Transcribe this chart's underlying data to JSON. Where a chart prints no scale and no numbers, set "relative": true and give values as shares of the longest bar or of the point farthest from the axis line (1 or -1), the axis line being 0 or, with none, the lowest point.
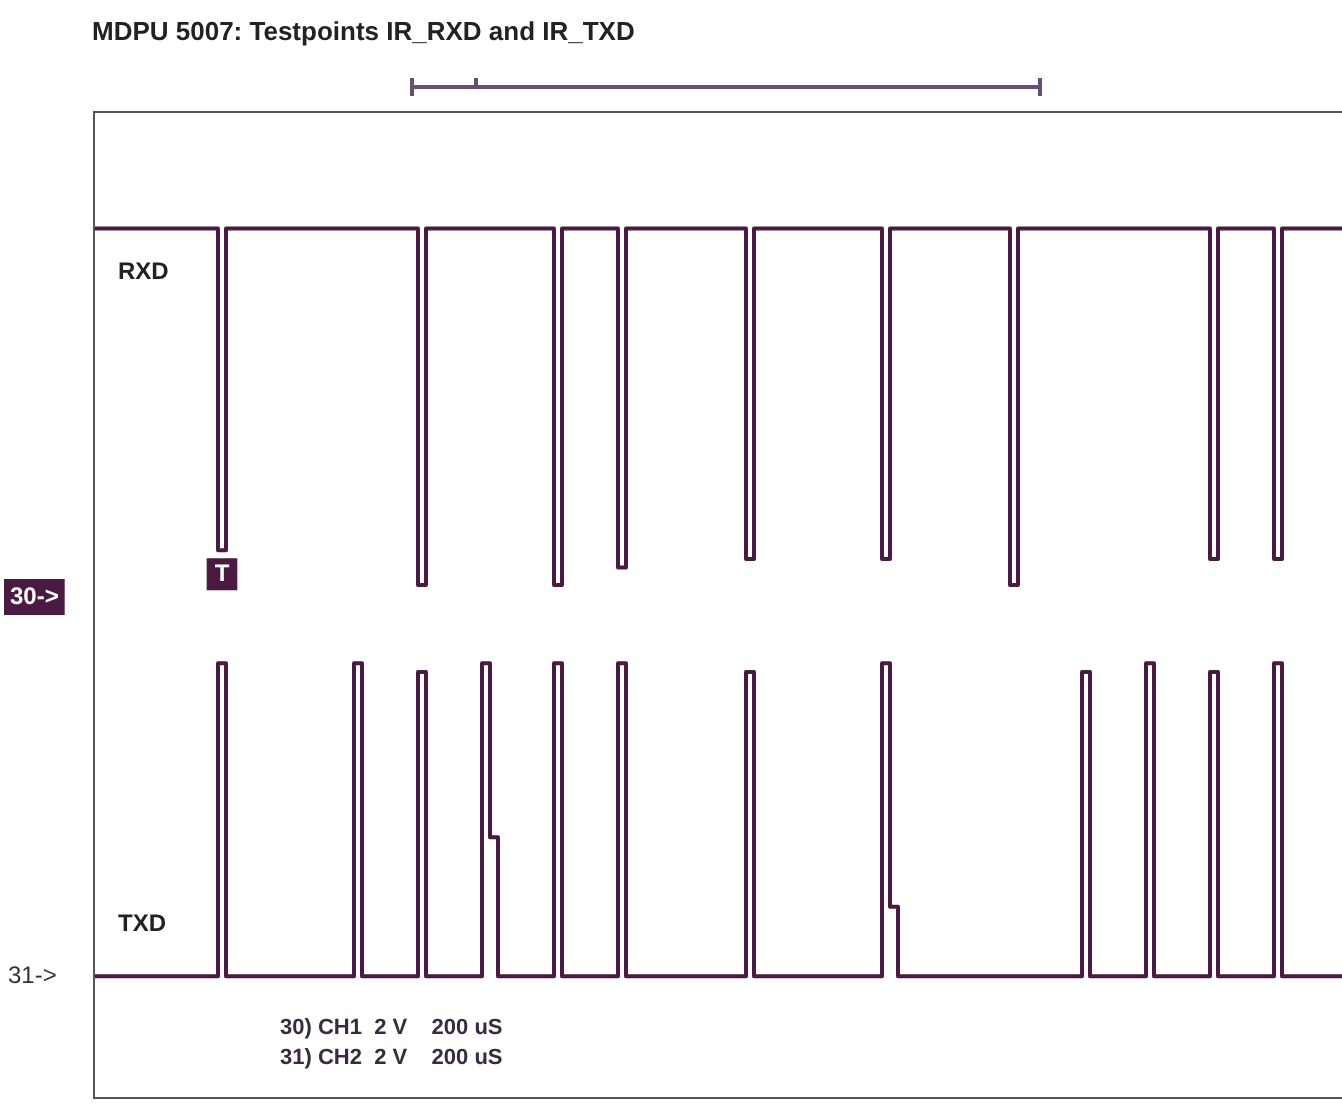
{
  "chart_data": {
    "type": "step",
    "title": "MDPU 5007: Testpoints IR_RXD and IR_TXD",
    "relative": true,
    "legend": false,
    "categories": [
      null,
      null,
      null,
      null,
      null,
      null,
      null,
      null,
      null,
      null,
      null,
      null,
      null,
      null,
      null,
      null,
      null,
      null,
      null,
      null,
      null,
      null,
      null,
      null,
      null,
      null,
      null,
      null,
      null,
      null,
      null,
      null,
      null,
      null,
      null,
      null,
      null,
      null,
      null,
      null,
      null,
      null,
      null,
      null,
      null,
      null,
      null,
      null,
      null,
      null,
      null,
      null,
      null,
      null,
      null,
      null,
      null,
      null,
      null,
      null,
      null,
      null,
      null,
      null,
      null,
      null,
      null,
      null,
      null,
      null,
      null,
      null,
      null,
      null,
      null,
      null,
      null,
      null,
      null,
      null,
      null,
      null,
      null,
      null,
      null,
      null,
      null,
      null,
      null,
      null,
      null,
      null,
      null,
      null,
      null,
      null,
      null,
      null,
      null,
      null,
      null,
      null,
      null,
      null,
      null,
      null,
      null,
      null,
      null,
      null,
      null,
      null,
      null,
      null,
      null,
      null,
      null,
      null,
      null,
      null,
      null,
      null,
      null,
      null,
      null,
      null,
      null,
      null,
      null,
      null,
      null,
      null,
      null,
      null,
      null,
      null,
      null,
      null,
      null,
      null,
      null,
      null,
      null,
      null,
      null,
      null,
      null,
      null,
      null,
      null,
      null,
      null,
      null,
      null,
      null,
      null,
      null
    ],
    "series": [
      {
        "name": "RXD",
        "color": "#4a1a42",
        "values": [
          1,
          1,
          1,
          1,
          1,
          1,
          1,
          1,
          1,
          1,
          1,
          1,
          1,
          1,
          1,
          1,
          0.63,
          1,
          1,
          1,
          1,
          1,
          1,
          1,
          1,
          1,
          1,
          1,
          1,
          1,
          1,
          1,
          1,
          1,
          1,
          1,
          1,
          1,
          1,
          1,
          1,
          0.59,
          1,
          1,
          1,
          1,
          1,
          1,
          1,
          1,
          1,
          1,
          1,
          1,
          1,
          1,
          1,
          1,
          0.59,
          1,
          1,
          1,
          1,
          1,
          1,
          1,
          0.61,
          1,
          1,
          1,
          1,
          1,
          1,
          1,
          1,
          1,
          1,
          1,
          1,
          1,
          1,
          1,
          0.62,
          1,
          1,
          1,
          1,
          1,
          1,
          1,
          1,
          1,
          1,
          1,
          1,
          1,
          1,
          1,
          1,
          0.62,
          1,
          1,
          1,
          1,
          1,
          1,
          1,
          1,
          1,
          1,
          1,
          1,
          1,
          1,
          1,
          0.59,
          1,
          1,
          1,
          1,
          1,
          1,
          1,
          1,
          1,
          1,
          1,
          1,
          1,
          1,
          1,
          1,
          1,
          1,
          1,
          1,
          1,
          1,
          1,
          1,
          0.62,
          1,
          1,
          1,
          1,
          1,
          1,
          1,
          0.62,
          1,
          1,
          1,
          1,
          1,
          1,
          1,
          1
        ]
      },
      {
        "name": "TXD",
        "color": "#4a1a42",
        "values": [
          0.14,
          0.14,
          0.14,
          0.14,
          0.14,
          0.14,
          0.14,
          0.14,
          0.14,
          0.14,
          0.14,
          0.14,
          0.14,
          0.14,
          0.14,
          0.14,
          0.5,
          0.14,
          0.14,
          0.14,
          0.14,
          0.14,
          0.14,
          0.14,
          0.14,
          0.14,
          0.14,
          0.14,
          0.14,
          0.14,
          0.14,
          0.14,
          0.14,
          0.5,
          0.14,
          0.14,
          0.14,
          0.14,
          0.14,
          0.14,
          0.14,
          0.49,
          0.14,
          0.14,
          0.14,
          0.14,
          0.14,
          0.14,
          0.14,
          0.5,
          0.3,
          0.14,
          0.14,
          0.14,
          0.14,
          0.14,
          0.14,
          0.14,
          0.5,
          0.14,
          0.14,
          0.14,
          0.14,
          0.14,
          0.14,
          0.14,
          0.5,
          0.14,
          0.14,
          0.14,
          0.14,
          0.14,
          0.14,
          0.14,
          0.14,
          0.14,
          0.14,
          0.14,
          0.14,
          0.14,
          0.14,
          0.14,
          0.49,
          0.14,
          0.14,
          0.14,
          0.14,
          0.14,
          0.14,
          0.14,
          0.14,
          0.14,
          0.14,
          0.14,
          0.14,
          0.14,
          0.14,
          0.14,
          0.14,
          0.5,
          0.22,
          0.14,
          0.14,
          0.14,
          0.14,
          0.14,
          0.14,
          0.14,
          0.14,
          0.14,
          0.14,
          0.14,
          0.14,
          0.14,
          0.14,
          0.14,
          0.14,
          0.14,
          0.14,
          0.14,
          0.14,
          0.14,
          0.14,
          0.14,
          0.49,
          0.14,
          0.14,
          0.14,
          0.14,
          0.14,
          0.14,
          0.14,
          0.5,
          0.14,
          0.14,
          0.14,
          0.14,
          0.14,
          0.14,
          0.14,
          0.49,
          0.14,
          0.14,
          0.14,
          0.14,
          0.14,
          0.14,
          0.14,
          0.5,
          0.14,
          0.14,
          0.14,
          0.14,
          0.14,
          0.14,
          0.14,
          0.14
        ]
      }
    ],
    "annotations": [
      "30->",
      "31->",
      "T",
      "30) CH1  2 V    200 uS",
      "31) CH2  2 V    200 uS"
    ]
  }
}
